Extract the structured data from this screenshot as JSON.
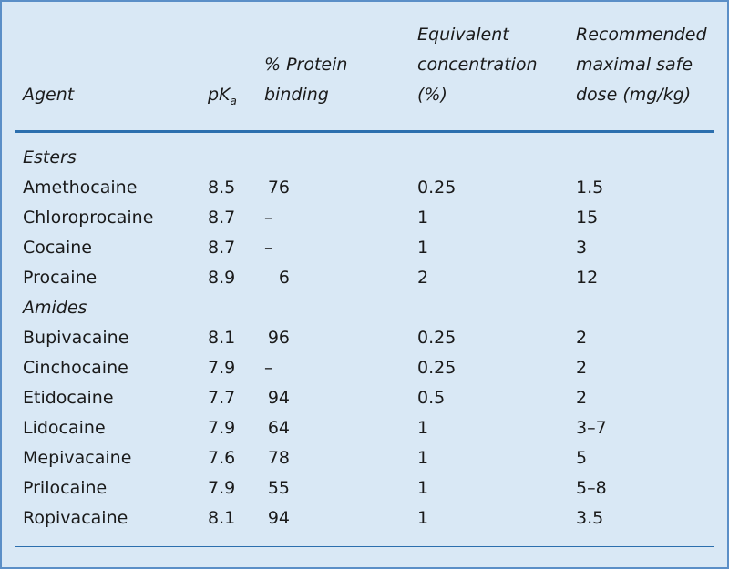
{
  "table": {
    "header": [
      [
        "Agent"
      ],
      [
        {
          "text": "pK",
          "sub": "a"
        }
      ],
      [
        "% Protein",
        "binding"
      ],
      [
        "Equivalent",
        "concentration",
        "(%)"
      ],
      [
        "Recommended",
        "maximal safe",
        "dose (mg/kg)"
      ]
    ],
    "groups": [
      {
        "name": "Esters",
        "rows": [
          [
            "Amethocaine",
            "8.5",
            "76",
            "0.25",
            "1.5"
          ],
          [
            "Chloroprocaine",
            "8.7",
            "–",
            "1",
            "15"
          ],
          [
            "Cocaine",
            "8.7",
            "–",
            "1",
            "3"
          ],
          [
            "Procaine",
            "8.9",
            "6",
            "2",
            "12"
          ]
        ]
      },
      {
        "name": "Amides",
        "rows": [
          [
            "Bupivacaine",
            "8.1",
            "96",
            "0.25",
            "2"
          ],
          [
            "Cinchocaine",
            "7.9",
            "–",
            "0.25",
            "2"
          ],
          [
            "Etidocaine",
            "7.7",
            "94",
            "0.5",
            "2"
          ],
          [
            "Lidocaine",
            "7.9",
            "64",
            "1",
            "3–7"
          ],
          [
            "Mepivacaine",
            "7.6",
            "78",
            "1",
            "5"
          ],
          [
            "Prilocaine",
            "7.9",
            "55",
            "1",
            "5–8"
          ],
          [
            "Ropivacaine",
            "8.1",
            "94",
            "1",
            "3.5"
          ]
        ]
      }
    ]
  }
}
